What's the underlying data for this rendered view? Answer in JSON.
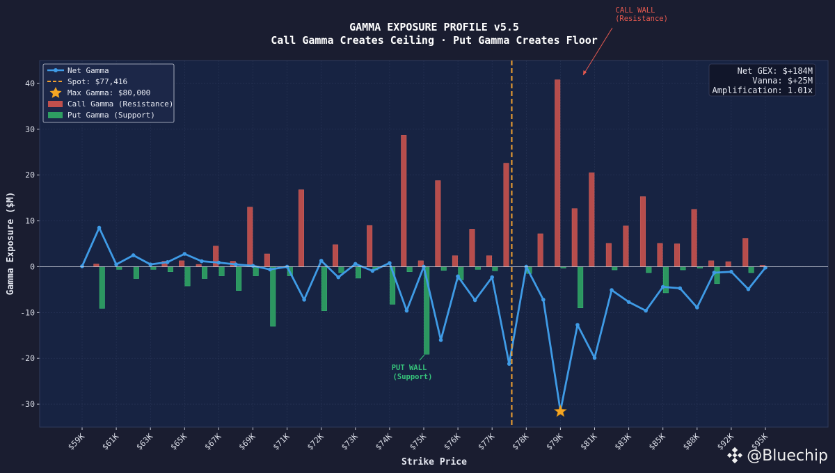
{
  "chart_data": {
    "type": "bar",
    "title": "GAMMA EXPOSURE PROFILE v5.5",
    "subtitle": "Call Gamma Creates Ceiling · Put Gamma Creates Floor",
    "xlabel": "Strike Price",
    "ylabel": "Gamma Exposure ($M)",
    "ylim": [
      -35,
      45
    ],
    "yticks": [
      -30,
      -20,
      -10,
      0,
      10,
      20,
      30,
      40
    ],
    "grid": true,
    "legend_position": "top-left",
    "x_tick_labels": [
      "$59K",
      "$61K",
      "$63K",
      "$65K",
      "$67K",
      "$69K",
      "$71K",
      "$72K",
      "$73K",
      "$74K",
      "$75K",
      "$76K",
      "$77K",
      "$78K",
      "$79K",
      "$81K",
      "$83K",
      "$85K",
      "$88K",
      "$92K",
      "$95K"
    ],
    "call_gamma": [
      0,
      0.6,
      0,
      0,
      0,
      1.2,
      1.3,
      0.5,
      4.5,
      1.2,
      13.0,
      2.8,
      0,
      16.8,
      0,
      4.8,
      0,
      9.0,
      0,
      28.7,
      1.3,
      18.8,
      2.4,
      8.2,
      2.4,
      22.6,
      0,
      7.2,
      40.8,
      12.7,
      20.5,
      5.1,
      8.9,
      15.3,
      5.1,
      5.0,
      12.5,
      1.3,
      1.1,
      6.2,
      0.3
    ],
    "put_gamma": [
      0,
      -9.1,
      -0.6,
      -2.6,
      -0.6,
      -1.1,
      -4.2,
      -2.6,
      -2.0,
      -5.2,
      -2.0,
      -13.0,
      -2.0,
      0,
      -9.6,
      -1.3,
      -2.5,
      -0.7,
      -8.2,
      -1.1,
      -19.1,
      -0.8,
      -2.9,
      -0.6,
      -0.9,
      0,
      -1.5,
      0,
      -0.3,
      -9.0,
      0,
      -0.7,
      0,
      -1.3,
      -5.7,
      -0.7,
      -0.3,
      -3.7,
      0,
      -1.3,
      0
    ],
    "series": [
      {
        "name": "Net Gamma",
        "values": [
          0.1,
          8.5,
          0.5,
          2.5,
          0.5,
          1.0,
          2.8,
          1.2,
          0.9,
          0.5,
          0.2,
          -0.6,
          0.0,
          -7.2,
          1.3,
          -2.3,
          0.6,
          -0.9,
          0.8,
          -9.6,
          0.0,
          -16.0,
          -2.1,
          -7.3,
          -2.3,
          -21.2,
          0.0,
          -7.2,
          -31.5,
          -12.7,
          -19.9,
          -5.1,
          -7.7,
          -9.6,
          -4.4,
          -4.7,
          -8.9,
          -1.3,
          -1.1,
          -4.9,
          -0.2
        ]
      },
      {
        "name": "Spot: $77,416",
        "value": 77416
      },
      {
        "name": "Max Gamma: $80,000",
        "value": 80000
      },
      {
        "name": "Call Gamma (Resistance)"
      },
      {
        "name": "Put Gamma (Support)"
      }
    ],
    "annotations": {
      "call_wall": [
        "CALL WALL",
        "(Resistance)"
      ],
      "put_wall": [
        "PUT WALL",
        "(Support)"
      ]
    },
    "info_box": [
      "Net GEX: $+184M",
      "Vanna: $+25M",
      "Amplification: 1.01x"
    ],
    "colors": {
      "net_gamma": "#3f9be6",
      "spot": "#f0a030",
      "max_star": "#f5a623",
      "call": "#c0504d",
      "put": "#2e9e62",
      "plot_bg": "#172342"
    }
  },
  "watermark": {
    "text": "@Bluechip",
    "icon": "binance-logo-icon"
  }
}
